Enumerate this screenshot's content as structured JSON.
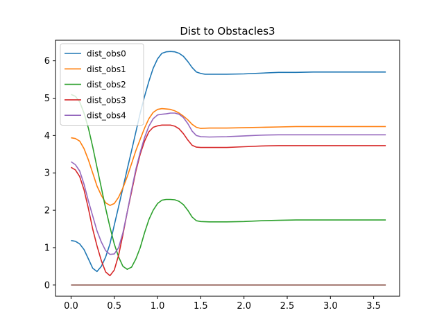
{
  "chart_data": {
    "type": "line",
    "title": "Dist to Obstacles3",
    "xlabel": "",
    "ylabel": "",
    "xlim": [
      -0.18,
      3.8
    ],
    "ylim": [
      -0.3,
      6.55
    ],
    "xticks": [
      0.0,
      0.5,
      1.0,
      1.5,
      2.0,
      2.5,
      3.0,
      3.5
    ],
    "xtick_labels": [
      "0.0",
      "0.5",
      "1.0",
      "1.5",
      "2.0",
      "2.5",
      "3.0",
      "3.5"
    ],
    "yticks": [
      0,
      1,
      2,
      3,
      4,
      5,
      6
    ],
    "ytick_labels": [
      "0",
      "1",
      "2",
      "3",
      "4",
      "5",
      "6"
    ],
    "grid": false,
    "legend_position": "top-left",
    "series": [
      {
        "name": "dist_obs0",
        "color": "#1f77b4",
        "x": [
          0.0,
          0.05,
          0.1,
          0.15,
          0.2,
          0.25,
          0.3,
          0.35,
          0.4,
          0.45,
          0.5,
          0.55,
          0.6,
          0.65,
          0.7,
          0.75,
          0.8,
          0.85,
          0.9,
          0.95,
          1.0,
          1.05,
          1.1,
          1.15,
          1.2,
          1.25,
          1.3,
          1.35,
          1.4,
          1.45,
          1.5,
          1.55,
          1.6,
          1.7,
          1.8,
          2.0,
          2.2,
          2.4,
          2.6,
          2.8,
          3.0,
          3.2,
          3.4,
          3.64
        ],
        "y": [
          1.19,
          1.17,
          1.1,
          0.95,
          0.7,
          0.45,
          0.36,
          0.5,
          0.75,
          1.1,
          1.6,
          2.1,
          2.6,
          3.1,
          3.6,
          4.1,
          4.6,
          5.05,
          5.45,
          5.8,
          6.05,
          6.2,
          6.24,
          6.25,
          6.24,
          6.2,
          6.12,
          5.98,
          5.82,
          5.7,
          5.66,
          5.64,
          5.64,
          5.64,
          5.64,
          5.65,
          5.67,
          5.69,
          5.69,
          5.7,
          5.7,
          5.7,
          5.7,
          5.7
        ]
      },
      {
        "name": "dist_obs1",
        "color": "#ff7f0e",
        "x": [
          0.0,
          0.05,
          0.1,
          0.15,
          0.2,
          0.25,
          0.3,
          0.35,
          0.4,
          0.45,
          0.5,
          0.55,
          0.6,
          0.65,
          0.7,
          0.75,
          0.8,
          0.85,
          0.9,
          0.95,
          1.0,
          1.05,
          1.1,
          1.15,
          1.2,
          1.25,
          1.3,
          1.35,
          1.4,
          1.45,
          1.5,
          1.6,
          1.8,
          2.0,
          2.2,
          2.4,
          2.6,
          2.8,
          3.0,
          3.2,
          3.4,
          3.64
        ],
        "y": [
          3.94,
          3.92,
          3.85,
          3.65,
          3.35,
          3.0,
          2.65,
          2.4,
          2.2,
          2.13,
          2.18,
          2.35,
          2.6,
          2.9,
          3.25,
          3.6,
          3.9,
          4.2,
          4.45,
          4.62,
          4.7,
          4.72,
          4.71,
          4.7,
          4.66,
          4.6,
          4.52,
          4.42,
          4.3,
          4.22,
          4.19,
          4.2,
          4.2,
          4.21,
          4.22,
          4.23,
          4.24,
          4.24,
          4.24,
          4.24,
          4.24,
          4.24
        ]
      },
      {
        "name": "dist_obs2",
        "color": "#2ca02c",
        "x": [
          0.0,
          0.05,
          0.1,
          0.15,
          0.2,
          0.25,
          0.3,
          0.35,
          0.4,
          0.45,
          0.5,
          0.55,
          0.6,
          0.65,
          0.7,
          0.75,
          0.8,
          0.85,
          0.9,
          0.95,
          1.0,
          1.05,
          1.1,
          1.15,
          1.2,
          1.25,
          1.3,
          1.35,
          1.4,
          1.45,
          1.5,
          1.6,
          1.8,
          2.0,
          2.2,
          2.4,
          2.6,
          2.8,
          3.0,
          3.2,
          3.4,
          3.64
        ],
        "y": [
          5.1,
          5.05,
          4.9,
          4.6,
          4.2,
          3.7,
          3.15,
          2.6,
          2.05,
          1.55,
          1.1,
          0.75,
          0.5,
          0.42,
          0.48,
          0.7,
          1.0,
          1.4,
          1.75,
          2.0,
          2.18,
          2.27,
          2.29,
          2.29,
          2.28,
          2.24,
          2.15,
          2.0,
          1.82,
          1.72,
          1.7,
          1.69,
          1.69,
          1.7,
          1.72,
          1.73,
          1.74,
          1.74,
          1.74,
          1.74,
          1.74,
          1.74
        ]
      },
      {
        "name": "dist_obs3",
        "color": "#d62728",
        "x": [
          0.0,
          0.05,
          0.1,
          0.15,
          0.2,
          0.25,
          0.3,
          0.35,
          0.4,
          0.45,
          0.5,
          0.55,
          0.6,
          0.65,
          0.7,
          0.75,
          0.8,
          0.85,
          0.9,
          0.95,
          1.0,
          1.05,
          1.1,
          1.15,
          1.2,
          1.25,
          1.3,
          1.35,
          1.4,
          1.45,
          1.5,
          1.6,
          1.8,
          2.0,
          2.2,
          2.4,
          2.6,
          2.8,
          3.0,
          3.2,
          3.4,
          3.64
        ],
        "y": [
          3.15,
          3.08,
          2.9,
          2.55,
          2.05,
          1.5,
          1.05,
          0.65,
          0.35,
          0.25,
          0.4,
          0.8,
          1.35,
          1.95,
          2.5,
          3.05,
          3.5,
          3.85,
          4.1,
          4.22,
          4.26,
          4.28,
          4.28,
          4.28,
          4.25,
          4.18,
          4.05,
          3.88,
          3.74,
          3.69,
          3.68,
          3.68,
          3.68,
          3.7,
          3.72,
          3.73,
          3.73,
          3.73,
          3.73,
          3.73,
          3.73,
          3.73
        ]
      },
      {
        "name": "dist_obs4",
        "color": "#9467bd",
        "x": [
          0.0,
          0.05,
          0.1,
          0.15,
          0.2,
          0.25,
          0.3,
          0.35,
          0.4,
          0.45,
          0.5,
          0.55,
          0.6,
          0.65,
          0.7,
          0.75,
          0.8,
          0.85,
          0.9,
          0.95,
          1.0,
          1.05,
          1.1,
          1.15,
          1.2,
          1.25,
          1.3,
          1.35,
          1.4,
          1.45,
          1.5,
          1.6,
          1.8,
          2.0,
          2.2,
          2.4,
          2.6,
          2.8,
          3.0,
          3.2,
          3.4,
          3.64
        ],
        "y": [
          3.3,
          3.22,
          3.05,
          2.7,
          2.25,
          1.85,
          1.45,
          1.15,
          0.92,
          0.82,
          0.83,
          1.0,
          1.4,
          1.95,
          2.55,
          3.1,
          3.55,
          3.95,
          4.25,
          4.45,
          4.55,
          4.57,
          4.58,
          4.6,
          4.6,
          4.57,
          4.48,
          4.32,
          4.12,
          4.0,
          3.97,
          3.96,
          3.97,
          3.99,
          4.01,
          4.02,
          4.02,
          4.02,
          4.02,
          4.02,
          4.02,
          4.02
        ]
      },
      {
        "name": "",
        "color": "#8c564b",
        "x": [
          0.0,
          3.64
        ],
        "y": [
          0.0,
          0.0
        ]
      }
    ]
  }
}
